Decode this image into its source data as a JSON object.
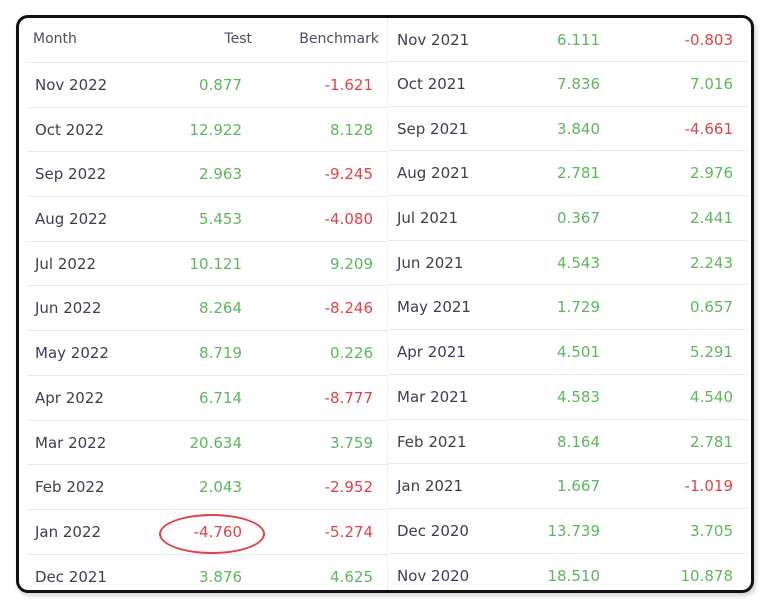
{
  "table": {
    "headers": {
      "month": "Month",
      "test": "Test",
      "benchmark": "Benchmark"
    },
    "left_rows": [
      {
        "month": "Nov 2022",
        "test": "0.877",
        "benchmark": "-1.621",
        "test_sign": "pos",
        "bench_sign": "neg"
      },
      {
        "month": "Oct 2022",
        "test": "12.922",
        "benchmark": "8.128",
        "test_sign": "pos",
        "bench_sign": "pos"
      },
      {
        "month": "Sep 2022",
        "test": "2.963",
        "benchmark": "-9.245",
        "test_sign": "pos",
        "bench_sign": "neg"
      },
      {
        "month": "Aug 2022",
        "test": "5.453",
        "benchmark": "-4.080",
        "test_sign": "pos",
        "bench_sign": "neg"
      },
      {
        "month": "Jul 2022",
        "test": "10.121",
        "benchmark": "9.209",
        "test_sign": "pos",
        "bench_sign": "pos"
      },
      {
        "month": "Jun 2022",
        "test": "8.264",
        "benchmark": "-8.246",
        "test_sign": "pos",
        "bench_sign": "neg"
      },
      {
        "month": "May 2022",
        "test": "8.719",
        "benchmark": "0.226",
        "test_sign": "pos",
        "bench_sign": "pos"
      },
      {
        "month": "Apr 2022",
        "test": "6.714",
        "benchmark": "-8.777",
        "test_sign": "pos",
        "bench_sign": "neg"
      },
      {
        "month": "Mar 2022",
        "test": "20.634",
        "benchmark": "3.759",
        "test_sign": "pos",
        "bench_sign": "pos"
      },
      {
        "month": "Feb 2022",
        "test": "2.043",
        "benchmark": "-2.952",
        "test_sign": "pos",
        "bench_sign": "neg"
      },
      {
        "month": "Jan 2022",
        "test": "-4.760",
        "benchmark": "-5.274",
        "test_sign": "neg",
        "bench_sign": "neg",
        "highlighted": true
      },
      {
        "month": "Dec 2021",
        "test": "3.876",
        "benchmark": "4.625",
        "test_sign": "pos",
        "bench_sign": "pos"
      }
    ],
    "right_rows": [
      {
        "month": "Nov 2021",
        "test": "6.111",
        "benchmark": "-0.803",
        "test_sign": "pos",
        "bench_sign": "neg"
      },
      {
        "month": "Oct 2021",
        "test": "7.836",
        "benchmark": "7.016",
        "test_sign": "pos",
        "bench_sign": "pos"
      },
      {
        "month": "Sep 2021",
        "test": "3.840",
        "benchmark": "-4.661",
        "test_sign": "pos",
        "bench_sign": "neg"
      },
      {
        "month": "Aug 2021",
        "test": "2.781",
        "benchmark": "2.976",
        "test_sign": "pos",
        "bench_sign": "pos"
      },
      {
        "month": "Jul 2021",
        "test": "0.367",
        "benchmark": "2.441",
        "test_sign": "pos",
        "bench_sign": "pos"
      },
      {
        "month": "Jun 2021",
        "test": "4.543",
        "benchmark": "2.243",
        "test_sign": "pos",
        "bench_sign": "pos"
      },
      {
        "month": "May 2021",
        "test": "1.729",
        "benchmark": "0.657",
        "test_sign": "pos",
        "bench_sign": "pos"
      },
      {
        "month": "Apr 2021",
        "test": "4.501",
        "benchmark": "5.291",
        "test_sign": "pos",
        "bench_sign": "pos"
      },
      {
        "month": "Mar 2021",
        "test": "4.583",
        "benchmark": "4.540",
        "test_sign": "pos",
        "bench_sign": "pos"
      },
      {
        "month": "Feb 2021",
        "test": "8.164",
        "benchmark": "2.781",
        "test_sign": "pos",
        "bench_sign": "pos"
      },
      {
        "month": "Jan 2021",
        "test": "1.667",
        "benchmark": "-1.019",
        "test_sign": "pos",
        "bench_sign": "neg"
      },
      {
        "month": "Dec 2020",
        "test": "13.739",
        "benchmark": "3.705",
        "test_sign": "pos",
        "bench_sign": "pos"
      },
      {
        "month": "Nov 2020",
        "test": "18.510",
        "benchmark": "10.878",
        "test_sign": "pos",
        "bench_sign": "pos"
      }
    ]
  },
  "colors": {
    "positive": "#5cb85c",
    "negative": "#e0424a",
    "highlight": "#e0424a"
  }
}
